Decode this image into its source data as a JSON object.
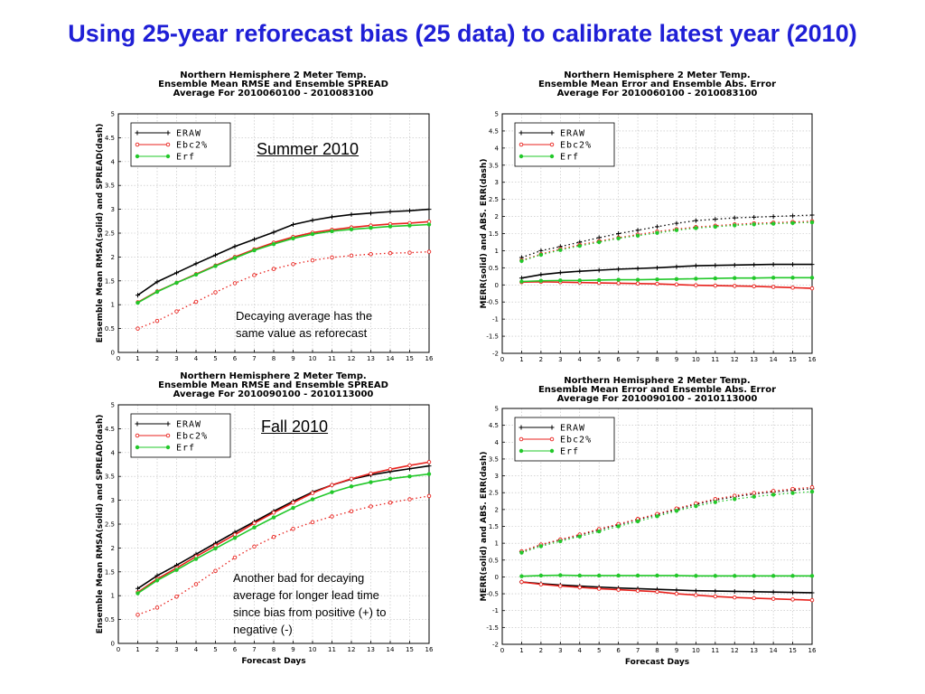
{
  "slide": {
    "title": "Using 25-year reforecast  bias (25 data) to calibrate latest year (2010)"
  },
  "colors": {
    "title": "#1f1fd6",
    "ERAW": "#000000",
    "Ebc2%": "#e8211c",
    "Erf": "#22c82a"
  },
  "chart_data": [
    {
      "id": "summer-rmse",
      "type": "line",
      "title_lines": [
        "Northern Hemisphere 2 Meter Temp.",
        "Ensemble Mean RMSE and Ensemble SPREAD",
        "Average For 2010060100 - 2010083100"
      ],
      "xlabel": "",
      "ylabel": "Ensemble Mean RMSA(solid)  and  SPREAD(dash)",
      "xlim": [
        0,
        16
      ],
      "ylim": [
        0,
        5
      ],
      "xticks": [
        0,
        1,
        2,
        3,
        4,
        5,
        6,
        7,
        8,
        9,
        10,
        11,
        12,
        13,
        14,
        15,
        16
      ],
      "yticks": [
        0,
        0.5,
        1,
        1.5,
        2,
        2.5,
        3,
        3.5,
        4,
        4.5,
        5
      ],
      "yticklabels": [
        "0",
        "0.5",
        "1",
        "1.5",
        "2",
        "2.5",
        "3",
        "3.5",
        "4",
        "4.5",
        "5"
      ],
      "legend": [
        "ERAW",
        "Ebc2%",
        "Erf"
      ],
      "legend_position": "top-left",
      "season_label": "Summer 2010",
      "annotation": [
        "Decaying average has the",
        "same value as reforecast"
      ],
      "x": [
        1,
        2,
        3,
        4,
        5,
        6,
        7,
        8,
        9,
        10,
        11,
        12,
        13,
        14,
        15,
        16
      ],
      "series": [
        {
          "name": "ERAW",
          "style": "solid",
          "values": [
            1.2,
            1.48,
            1.67,
            1.86,
            2.04,
            2.22,
            2.37,
            2.52,
            2.68,
            2.77,
            2.84,
            2.89,
            2.92,
            2.95,
            2.97,
            3.0
          ]
        },
        {
          "name": "Ebc2%",
          "style": "solid",
          "values": [
            1.05,
            1.28,
            1.46,
            1.64,
            1.82,
            2.0,
            2.16,
            2.3,
            2.42,
            2.51,
            2.57,
            2.62,
            2.66,
            2.69,
            2.71,
            2.74
          ]
        },
        {
          "name": "Erf",
          "style": "solid",
          "values": [
            1.04,
            1.27,
            1.46,
            1.63,
            1.81,
            1.98,
            2.14,
            2.27,
            2.39,
            2.48,
            2.54,
            2.58,
            2.61,
            2.64,
            2.66,
            2.68
          ]
        },
        {
          "name": "Ebc2%",
          "style": "dash",
          "values": [
            0.5,
            0.66,
            0.86,
            1.06,
            1.26,
            1.45,
            1.62,
            1.75,
            1.85,
            1.93,
            1.99,
            2.03,
            2.06,
            2.08,
            2.09,
            2.11
          ]
        }
      ]
    },
    {
      "id": "summer-merr",
      "type": "line",
      "title_lines": [
        "Northern Hemisphere 2 Meter Temp.",
        "Ensemble Mean Error and Ensemble Abs. Error",
        "Average For 2010060100 - 2010083100"
      ],
      "xlabel": "",
      "ylabel": "MERR(solid)  and  ABS.  ERR(dash)",
      "xlim": [
        0,
        16
      ],
      "ylim": [
        -2,
        5
      ],
      "xticks": [
        0,
        1,
        2,
        3,
        4,
        5,
        6,
        7,
        8,
        9,
        10,
        11,
        12,
        13,
        14,
        15,
        16
      ],
      "yticks": [
        -2,
        -1.5,
        -1,
        -0.5,
        0,
        0.5,
        1,
        1.5,
        2,
        2.5,
        3,
        3.5,
        4,
        4.5,
        5
      ],
      "yticklabels": [
        "-2",
        "-1.5",
        "-1",
        "-0.5",
        "0",
        "0.5",
        "1",
        "1.5",
        "2",
        "2.5",
        "3",
        "3.5",
        "4",
        "4.5",
        "5"
      ],
      "legend": [
        "ERAW",
        "Ebc2%",
        "Erf"
      ],
      "legend_position": "top-left",
      "x": [
        1,
        2,
        3,
        4,
        5,
        6,
        7,
        8,
        9,
        10,
        11,
        12,
        13,
        14,
        15,
        16
      ],
      "series": [
        {
          "name": "ERAW",
          "style": "dash",
          "values": [
            0.8,
            1.0,
            1.12,
            1.25,
            1.38,
            1.5,
            1.6,
            1.7,
            1.8,
            1.88,
            1.92,
            1.96,
            1.98,
            2.0,
            2.02,
            2.04
          ]
        },
        {
          "name": "Ebc2%",
          "style": "dash",
          "values": [
            0.72,
            0.9,
            1.05,
            1.17,
            1.28,
            1.38,
            1.47,
            1.56,
            1.63,
            1.69,
            1.73,
            1.77,
            1.8,
            1.82,
            1.84,
            1.86
          ]
        },
        {
          "name": "Erf",
          "style": "dash",
          "values": [
            0.7,
            0.88,
            1.02,
            1.14,
            1.25,
            1.36,
            1.44,
            1.52,
            1.6,
            1.66,
            1.7,
            1.74,
            1.77,
            1.79,
            1.81,
            1.83
          ]
        },
        {
          "name": "ERAW",
          "style": "solid",
          "values": [
            0.2,
            0.3,
            0.36,
            0.4,
            0.43,
            0.46,
            0.48,
            0.5,
            0.53,
            0.56,
            0.57,
            0.58,
            0.59,
            0.6,
            0.6,
            0.6
          ]
        },
        {
          "name": "Ebc2%",
          "style": "solid",
          "values": [
            0.08,
            0.09,
            0.08,
            0.07,
            0.06,
            0.05,
            0.04,
            0.03,
            0.01,
            -0.01,
            -0.02,
            -0.03,
            -0.04,
            -0.06,
            -0.08,
            -0.1
          ]
        },
        {
          "name": "Erf",
          "style": "solid",
          "values": [
            0.1,
            0.12,
            0.13,
            0.13,
            0.14,
            0.15,
            0.15,
            0.16,
            0.17,
            0.18,
            0.19,
            0.2,
            0.2,
            0.21,
            0.21,
            0.21
          ]
        }
      ]
    },
    {
      "id": "fall-rmse",
      "type": "line",
      "title_lines": [
        "Northern Hemisphere 2 Meter Temp.",
        "Ensemble Mean RMSE and Ensemble SPREAD",
        "Average For 2010090100 - 2010113000"
      ],
      "xlabel": "Forecast Days",
      "ylabel": "Ensemble Mean RMSA(solid)  and  SPREAD(dash)",
      "xlim": [
        0,
        16
      ],
      "ylim": [
        0,
        5
      ],
      "xticks": [
        0,
        1,
        2,
        3,
        4,
        5,
        6,
        7,
        8,
        9,
        10,
        11,
        12,
        13,
        14,
        15,
        16
      ],
      "yticks": [
        0,
        0.5,
        1,
        1.5,
        2,
        2.5,
        3,
        3.5,
        4,
        4.5,
        5
      ],
      "yticklabels": [
        "0",
        "0.5",
        "1",
        "1.5",
        "2",
        "2.5",
        "3",
        "3.5",
        "4",
        "4.5",
        "5"
      ],
      "legend": [
        "ERAW",
        "Ebc2%",
        "Erf"
      ],
      "legend_position": "top-left",
      "season_label": "Fall 2010",
      "annotation": [
        "Another bad for decaying",
        "average for longer lead time",
        "since bias from positive  (+) to",
        "negative (-)"
      ],
      "x": [
        1,
        2,
        3,
        4,
        5,
        6,
        7,
        8,
        9,
        10,
        11,
        12,
        13,
        14,
        15,
        16
      ],
      "series": [
        {
          "name": "ERAW",
          "style": "solid",
          "values": [
            1.15,
            1.42,
            1.64,
            1.87,
            2.1,
            2.33,
            2.55,
            2.77,
            2.98,
            3.17,
            3.32,
            3.44,
            3.53,
            3.6,
            3.66,
            3.72
          ]
        },
        {
          "name": "Ebc2%",
          "style": "solid",
          "values": [
            1.07,
            1.35,
            1.58,
            1.82,
            2.05,
            2.28,
            2.52,
            2.74,
            2.95,
            3.15,
            3.32,
            3.45,
            3.56,
            3.65,
            3.73,
            3.8
          ]
        },
        {
          "name": "Erf",
          "style": "solid",
          "values": [
            1.05,
            1.32,
            1.54,
            1.77,
            1.99,
            2.21,
            2.43,
            2.64,
            2.84,
            3.02,
            3.17,
            3.29,
            3.38,
            3.45,
            3.5,
            3.55
          ]
        },
        {
          "name": "Ebc2%",
          "style": "dash",
          "values": [
            0.6,
            0.75,
            0.98,
            1.24,
            1.52,
            1.8,
            2.03,
            2.23,
            2.4,
            2.54,
            2.66,
            2.77,
            2.87,
            2.95,
            3.02,
            3.09
          ]
        }
      ]
    },
    {
      "id": "fall-merr",
      "type": "line",
      "title_lines": [
        "Northern Hemisphere 2 Meter Temp.",
        "Ensemble Mean Error and Ensemble Abs. Error",
        "Average For 2010090100 - 2010113000"
      ],
      "xlabel": "Forecast Days",
      "ylabel": "MERR(solid)  and  ABS.  ERR(dash)",
      "xlim": [
        0,
        16
      ],
      "ylim": [
        -2,
        5
      ],
      "xticks": [
        0,
        1,
        2,
        3,
        4,
        5,
        6,
        7,
        8,
        9,
        10,
        11,
        12,
        13,
        14,
        15,
        16
      ],
      "yticks": [
        -2,
        -1.5,
        -1,
        -0.5,
        0,
        0.5,
        1,
        1.5,
        2,
        2.5,
        3,
        3.5,
        4,
        4.5,
        5
      ],
      "yticklabels": [
        "-2",
        "-1.5",
        "-1",
        "-0.5",
        "0",
        "0.5",
        "1",
        "1.5",
        "2",
        "2.5",
        "3",
        "3.5",
        "4",
        "4.5",
        "5"
      ],
      "legend": [
        "ERAW",
        "Ebc2%",
        "Erf"
      ],
      "legend_position": "top-left",
      "x": [
        1,
        2,
        3,
        4,
        5,
        6,
        7,
        8,
        9,
        10,
        11,
        12,
        13,
        14,
        15,
        16
      ],
      "series": [
        {
          "name": "ERAW",
          "style": "dash",
          "values": [
            0.75,
            0.95,
            1.1,
            1.24,
            1.4,
            1.55,
            1.7,
            1.85,
            2.0,
            2.15,
            2.28,
            2.38,
            2.46,
            2.52,
            2.57,
            2.62
          ]
        },
        {
          "name": "Ebc2%",
          "style": "dash",
          "values": [
            0.76,
            0.96,
            1.11,
            1.26,
            1.42,
            1.57,
            1.72,
            1.87,
            2.03,
            2.18,
            2.31,
            2.41,
            2.49,
            2.55,
            2.61,
            2.66
          ]
        },
        {
          "name": "Erf",
          "style": "dash",
          "values": [
            0.72,
            0.91,
            1.06,
            1.2,
            1.35,
            1.5,
            1.65,
            1.8,
            1.96,
            2.1,
            2.22,
            2.31,
            2.38,
            2.44,
            2.49,
            2.53
          ]
        },
        {
          "name": "Erf",
          "style": "solid",
          "values": [
            0.02,
            0.04,
            0.05,
            0.04,
            0.04,
            0.04,
            0.04,
            0.04,
            0.04,
            0.03,
            0.03,
            0.03,
            0.03,
            0.03,
            0.03,
            0.03
          ]
        },
        {
          "name": "ERAW",
          "style": "solid",
          "values": [
            -0.15,
            -0.2,
            -0.24,
            -0.27,
            -0.3,
            -0.33,
            -0.35,
            -0.37,
            -0.39,
            -0.41,
            -0.42,
            -0.43,
            -0.44,
            -0.45,
            -0.46,
            -0.47
          ]
        },
        {
          "name": "Ebc2%",
          "style": "solid",
          "values": [
            -0.15,
            -0.22,
            -0.27,
            -0.31,
            -0.35,
            -0.38,
            -0.41,
            -0.44,
            -0.5,
            -0.54,
            -0.58,
            -0.61,
            -0.63,
            -0.65,
            -0.67,
            -0.69
          ]
        }
      ]
    }
  ]
}
